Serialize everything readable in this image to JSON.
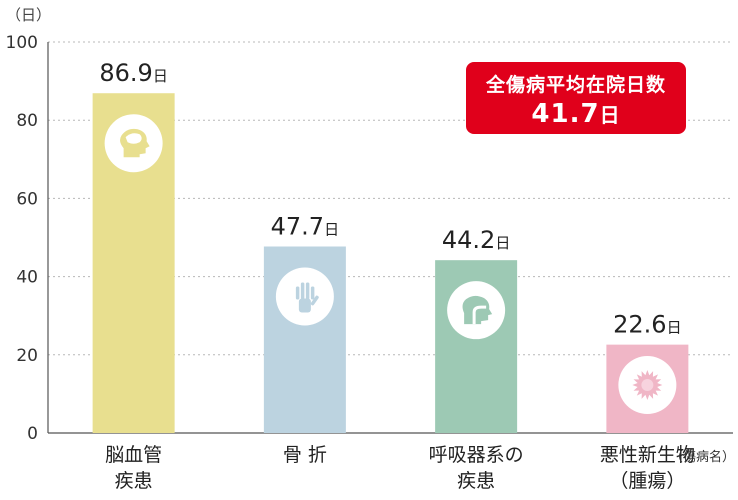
{
  "chart_data": {
    "type": "bar",
    "y_unit": "（日）",
    "ylim": [
      0,
      100
    ],
    "yticks": [
      0,
      20,
      40,
      60,
      80,
      100
    ],
    "grid": true,
    "categories": [
      {
        "label_lines": [
          "脳血管",
          "疾患"
        ],
        "note": ""
      },
      {
        "label_lines": [
          "骨 折"
        ],
        "note": ""
      },
      {
        "label_lines": [
          "呼吸器系の",
          "疾患"
        ],
        "note": ""
      },
      {
        "label_lines": [
          "悪性新生物",
          "（腫瘍）"
        ],
        "note": "（傷病名）"
      }
    ],
    "values": [
      86.9,
      47.7,
      44.2,
      22.6
    ],
    "value_suffix": "日",
    "bar_colors": [
      "#e8df8f",
      "#bcd3e0",
      "#9dc9b4",
      "#f0b6c6"
    ],
    "icons": [
      "brain-head-icon",
      "hand-bones-icon",
      "respiratory-head-icon",
      "tumor-cell-icon"
    ],
    "annotation": {
      "title": "全傷病平均在院日数",
      "value": "41.7",
      "unit": "日",
      "color": "#e0001b"
    }
  }
}
